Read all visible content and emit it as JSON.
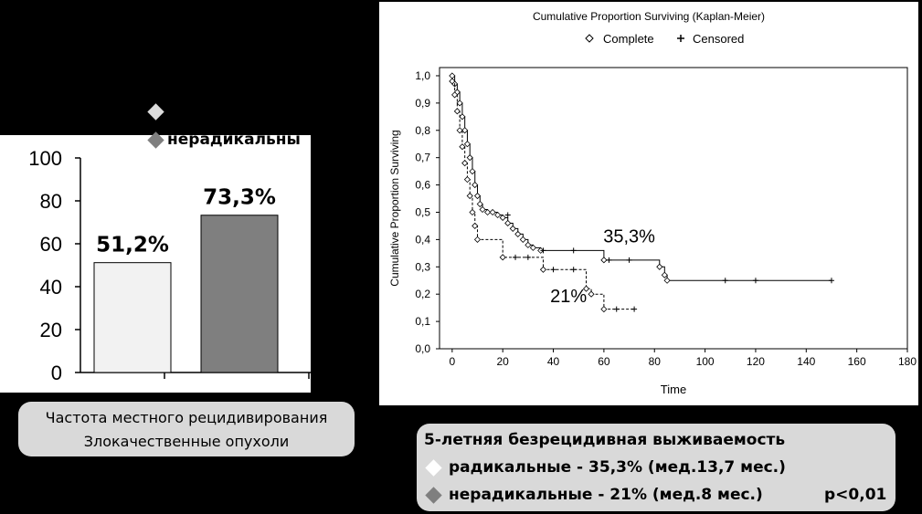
{
  "left_chart": {
    "legend": {
      "items": [
        {
          "label": "",
          "color": "#dcdcdc"
        },
        {
          "label": "нерадикальны",
          "color": "#7f7f7f"
        }
      ]
    },
    "caption": {
      "line1": "Частота местного рецидивирования",
      "line2": "Злокачественные опухоли"
    }
  },
  "right_chart": {
    "caption": {
      "title": "5-летняя безрецидивная  выживаемость",
      "line_radical": "радикальные  - 35,3% (мед.13,7 мес.)",
      "line_nonradical": "нерадикальные  - 21% (мед.8 мес.)",
      "pvalue": "p<0,01",
      "radical_color": "#ffffff",
      "nonradical_color": "#7f7f7f"
    }
  },
  "chart_data": [
    {
      "type": "bar",
      "categories": [
        "",
        ""
      ],
      "series": [
        {
          "name": "",
          "values": [
            51.2,
            73.3
          ]
        }
      ],
      "data_labels": [
        "51,2%",
        "73,3%"
      ],
      "bar_colors": [
        "#f2f2f2",
        "#7f7f7f"
      ],
      "ylim": [
        0,
        100
      ],
      "yticks": [
        0,
        20,
        40,
        60,
        80,
        100
      ],
      "ytick_labels": [
        "0",
        "20",
        "40",
        "60",
        "80",
        "100"
      ],
      "xlabel": "",
      "ylabel": "",
      "title": ""
    },
    {
      "type": "line",
      "title": "Cumulative Proportion Surviving (Kaplan-Meier)",
      "xlabel": "Time",
      "ylabel": "Cumulative Proportion Surviving",
      "xlim": [
        -5,
        180
      ],
      "ylim": [
        0,
        1.03
      ],
      "xticks": [
        0,
        20,
        40,
        60,
        80,
        100,
        120,
        140,
        160,
        180
      ],
      "xtick_labels": [
        "0",
        "20",
        "40",
        "60",
        "80",
        "100",
        "120",
        "140",
        "160",
        "180"
      ],
      "yticks": [
        0,
        0.1,
        0.2,
        0.3,
        0.4,
        0.5,
        0.6,
        0.7,
        0.8,
        0.9,
        1.0
      ],
      "ytick_labels": [
        "0,0",
        "0,1",
        "0,2",
        "0,3",
        "0,4",
        "0,5",
        "0,6",
        "0,7",
        "0,8",
        "0,9",
        "1,0"
      ],
      "legend": [
        "Complete",
        "Censored"
      ],
      "legend_position": "top",
      "grid": false,
      "annotations": [
        {
          "text": "35,3%",
          "x": 70,
          "y": 0.39
        },
        {
          "text": "21%",
          "x": 46,
          "y": 0.17
        }
      ],
      "series": [
        {
          "name": "",
          "style": "solid",
          "x": [
            0,
            1,
            2,
            3,
            4,
            5,
            6,
            7,
            8,
            9,
            10,
            11,
            12,
            14,
            16,
            18,
            20,
            22,
            24,
            26,
            28,
            30,
            32,
            35,
            60,
            82,
            84,
            85,
            150
          ],
          "y": [
            1.0,
            0.97,
            0.94,
            0.9,
            0.85,
            0.8,
            0.75,
            0.7,
            0.65,
            0.6,
            0.56,
            0.53,
            0.51,
            0.5,
            0.5,
            0.49,
            0.48,
            0.46,
            0.44,
            0.42,
            0.4,
            0.38,
            0.37,
            0.36,
            0.325,
            0.3,
            0.27,
            0.25,
            0.25
          ],
          "censored": [
            {
              "x": 22,
              "y": 0.49
            },
            {
              "x": 36,
              "y": 0.36
            },
            {
              "x": 48,
              "y": 0.36
            },
            {
              "x": 62,
              "y": 0.325
            },
            {
              "x": 70,
              "y": 0.325
            },
            {
              "x": 108,
              "y": 0.25
            },
            {
              "x": 120,
              "y": 0.25
            },
            {
              "x": 150,
              "y": 0.25
            }
          ]
        },
        {
          "name": "",
          "style": "dashed",
          "x": [
            0,
            1,
            2,
            3,
            4,
            5,
            6,
            7,
            8,
            9,
            10,
            20,
            36,
            53,
            55,
            60,
            72
          ],
          "y": [
            0.98,
            0.93,
            0.87,
            0.8,
            0.74,
            0.68,
            0.62,
            0.56,
            0.5,
            0.45,
            0.4,
            0.335,
            0.29,
            0.22,
            0.2,
            0.145,
            0.145
          ],
          "censored": [
            {
              "x": 25,
              "y": 0.335
            },
            {
              "x": 30,
              "y": 0.335
            },
            {
              "x": 40,
              "y": 0.29
            },
            {
              "x": 48,
              "y": 0.29
            },
            {
              "x": 65,
              "y": 0.145
            },
            {
              "x": 72,
              "y": 0.145
            }
          ]
        }
      ]
    }
  ]
}
